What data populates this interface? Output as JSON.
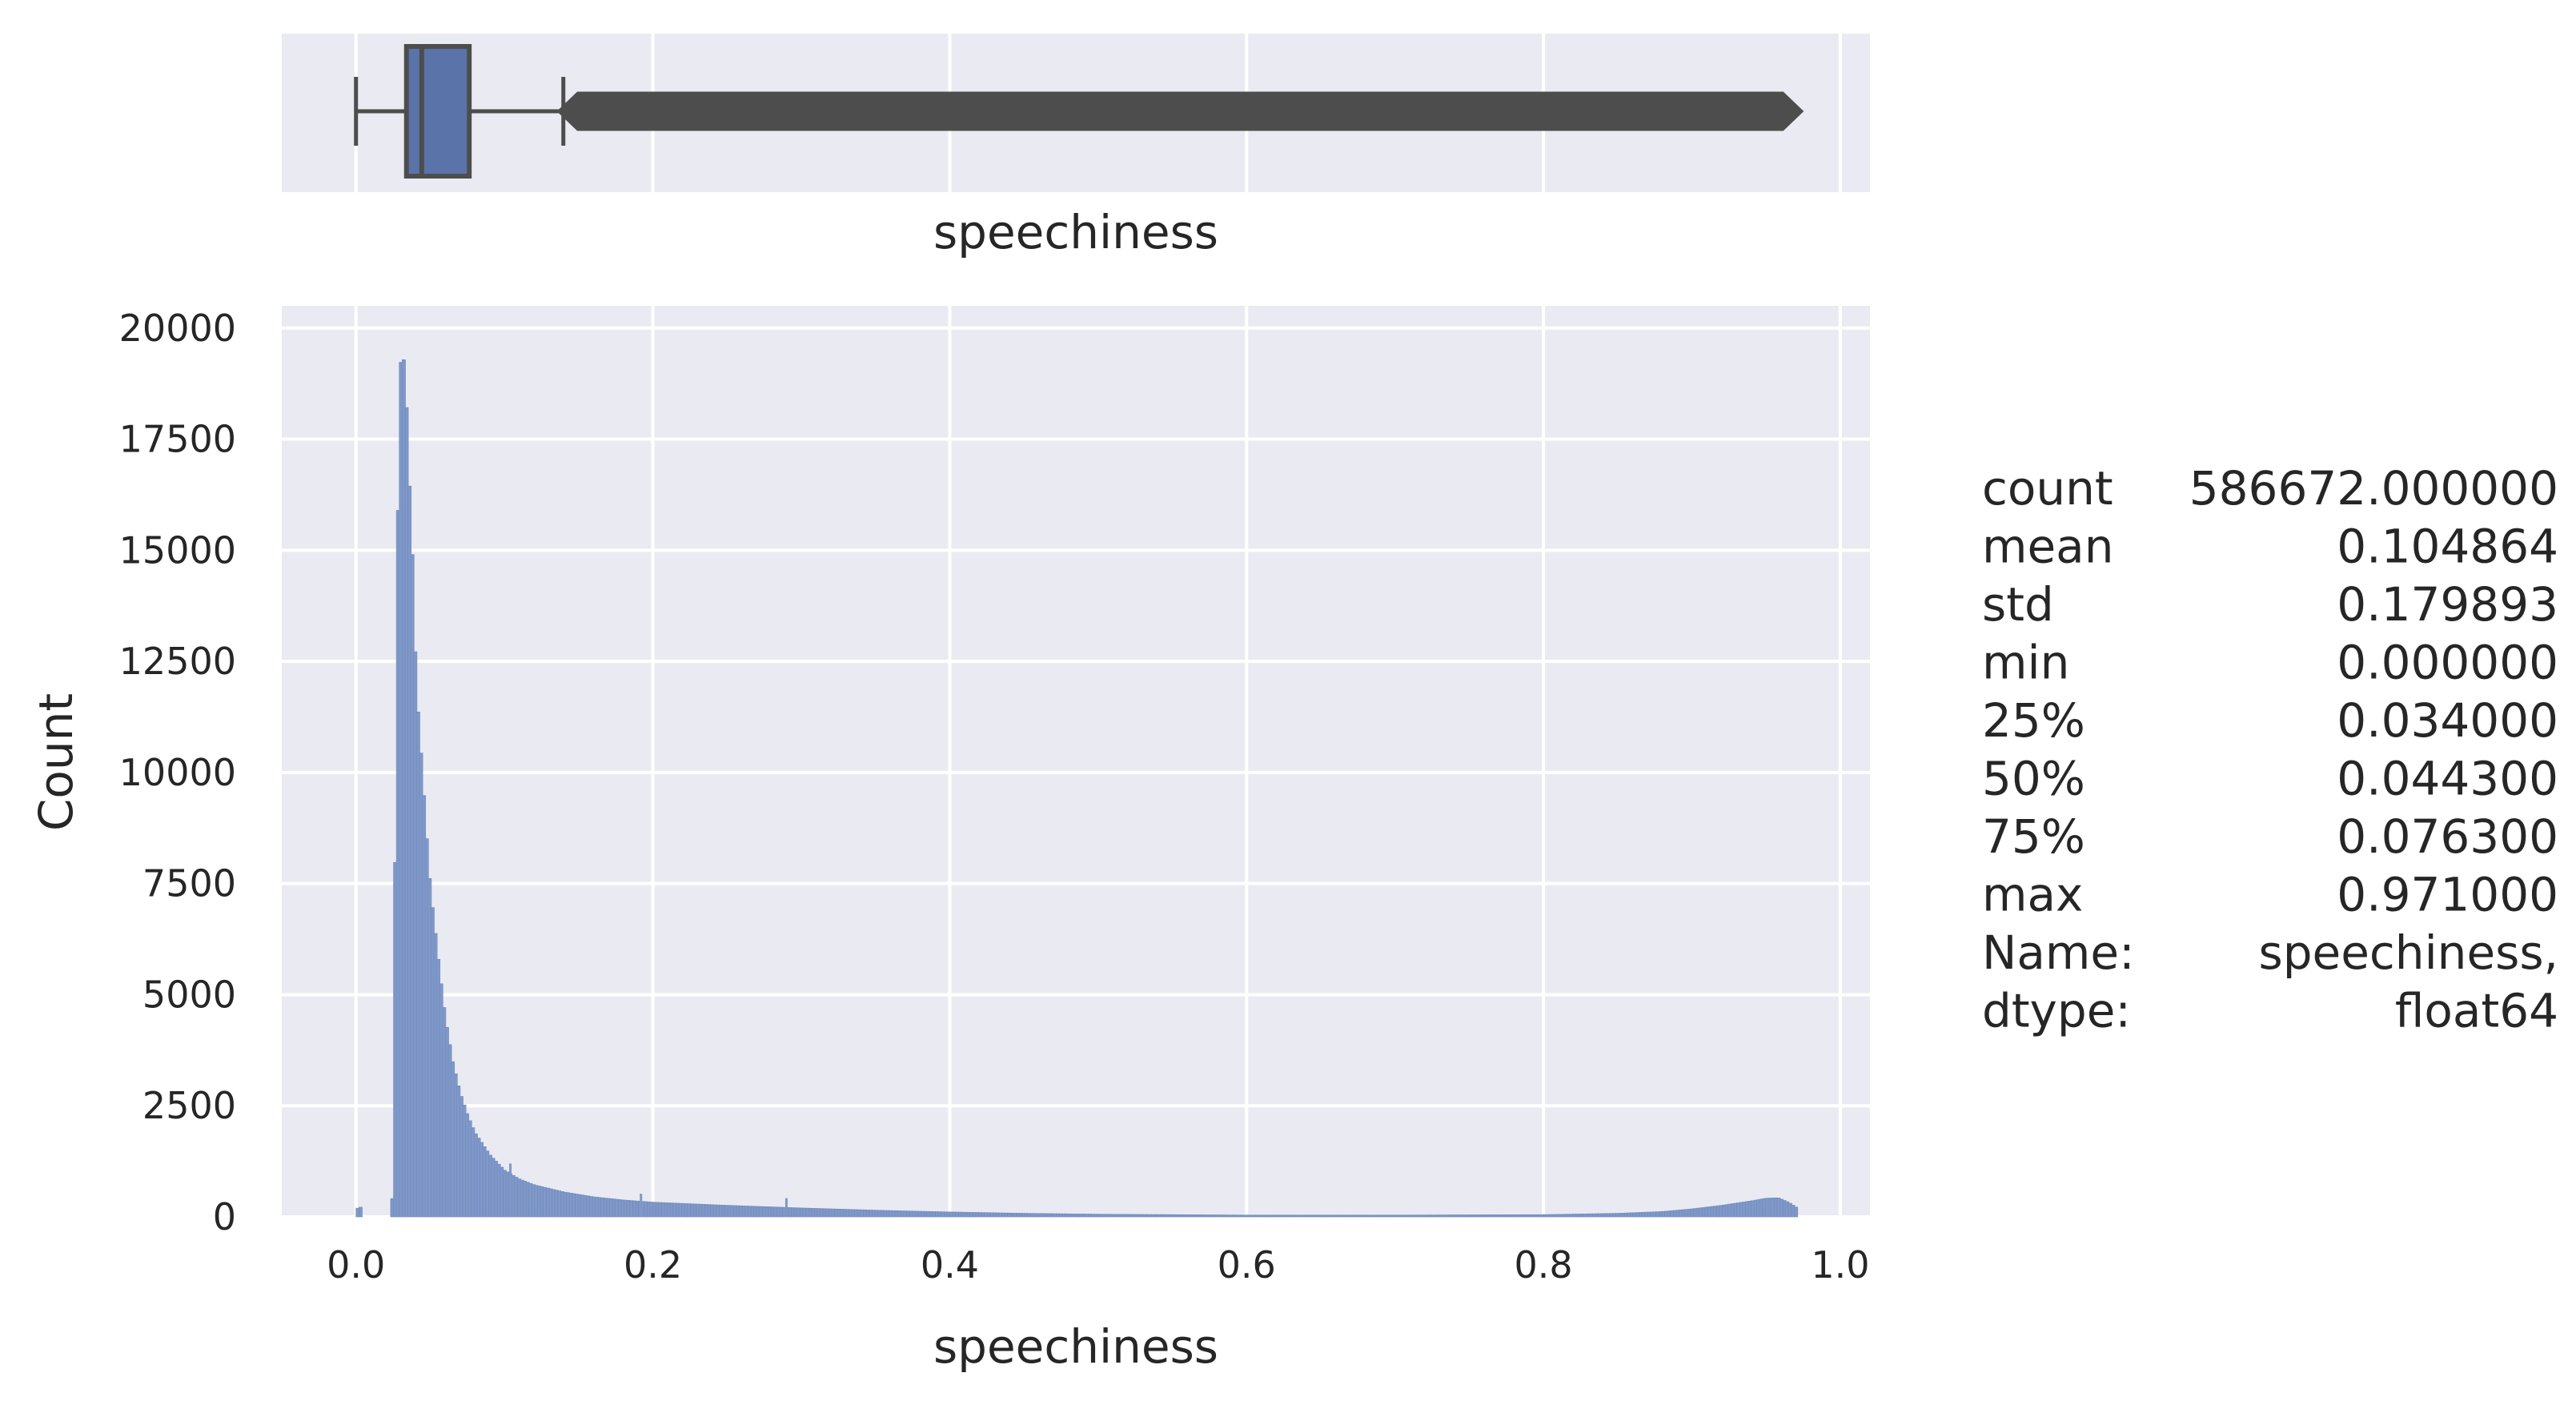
{
  "chart_data": [
    {
      "type": "box",
      "variable": "speechiness",
      "xlabel": "speechiness",
      "xlim": [
        -0.05,
        1.02
      ],
      "stats": {
        "whisker_low": 0.0,
        "q1": 0.034,
        "median": 0.0443,
        "q3": 0.0763,
        "whisker_high": 0.1397,
        "outliers_from": 0.1397,
        "outliers_to": 0.971
      },
      "colors": {
        "box": "#5a74a9",
        "lines": "#4d4d4d",
        "background": "#eaeaf2",
        "grid": "#ffffff"
      }
    },
    {
      "type": "histogram",
      "variable": "speechiness",
      "xlabel": "speechiness",
      "ylabel": "Count",
      "xlim": [
        -0.05,
        1.02
      ],
      "ylim": [
        0,
        20500
      ],
      "xticks": [
        "0.0",
        "0.2",
        "0.4",
        "0.6",
        "0.8",
        "1.0"
      ],
      "yticks": [
        "0",
        "2500",
        "5000",
        "7500",
        "10000",
        "12500",
        "15000",
        "17500",
        "20000"
      ],
      "grid": true,
      "bin_range": [
        0.0,
        0.971
      ],
      "profile": [
        [
          0.0,
          0
        ],
        [
          0.002,
          400
        ],
        [
          0.004,
          0
        ],
        [
          0.024,
          0
        ],
        [
          0.025,
          1500
        ],
        [
          0.026,
          7000
        ],
        [
          0.027,
          11500
        ],
        [
          0.028,
          15500
        ],
        [
          0.029,
          18000
        ],
        [
          0.03,
          19200
        ],
        [
          0.031,
          19500
        ],
        [
          0.032,
          19300
        ],
        [
          0.033,
          19000
        ],
        [
          0.034,
          18200
        ],
        [
          0.035,
          17000
        ],
        [
          0.036,
          16400
        ],
        [
          0.037,
          15600
        ],
        [
          0.038,
          14800
        ],
        [
          0.04,
          12500
        ],
        [
          0.042,
          11200
        ],
        [
          0.044,
          10300
        ],
        [
          0.046,
          9300
        ],
        [
          0.048,
          8300
        ],
        [
          0.05,
          7400
        ],
        [
          0.053,
          6500
        ],
        [
          0.056,
          5600
        ],
        [
          0.06,
          4500
        ],
        [
          0.065,
          3500
        ],
        [
          0.07,
          2800
        ],
        [
          0.075,
          2300
        ],
        [
          0.08,
          1900
        ],
        [
          0.09,
          1400
        ],
        [
          0.1,
          1050
        ],
        [
          0.11,
          850
        ],
        [
          0.12,
          720
        ],
        [
          0.14,
          560
        ],
        [
          0.16,
          450
        ],
        [
          0.18,
          380
        ],
        [
          0.2,
          330
        ],
        [
          0.25,
          260
        ],
        [
          0.3,
          200
        ],
        [
          0.35,
          150
        ],
        [
          0.4,
          110
        ],
        [
          0.45,
          80
        ],
        [
          0.5,
          60
        ],
        [
          0.6,
          40
        ],
        [
          0.7,
          40
        ],
        [
          0.8,
          50
        ],
        [
          0.85,
          80
        ],
        [
          0.88,
          120
        ],
        [
          0.9,
          180
        ],
        [
          0.92,
          260
        ],
        [
          0.94,
          360
        ],
        [
          0.95,
          420
        ],
        [
          0.958,
          430
        ],
        [
          0.965,
          330
        ],
        [
          0.971,
          200
        ]
      ],
      "spikes": [
        [
          0.104,
          1200
        ],
        [
          0.192,
          520
        ],
        [
          0.29,
          420
        ]
      ],
      "colors": {
        "bars": "#7f98c8",
        "background": "#eaeaf2",
        "grid": "#ffffff"
      }
    }
  ],
  "describe": {
    "rows": [
      {
        "key": "count",
        "value": "586672.000000"
      },
      {
        "key": "mean",
        "value": "0.104864"
      },
      {
        "key": "std",
        "value": "0.179893"
      },
      {
        "key": "min",
        "value": "0.000000"
      },
      {
        "key": "25%",
        "value": "0.034000"
      },
      {
        "key": "50%",
        "value": "0.044300"
      },
      {
        "key": "75%",
        "value": "0.076300"
      },
      {
        "key": "max",
        "value": "0.971000"
      },
      {
        "key": "Name:",
        "value": "speechiness,"
      },
      {
        "key": "dtype:",
        "value": "float64"
      }
    ]
  }
}
